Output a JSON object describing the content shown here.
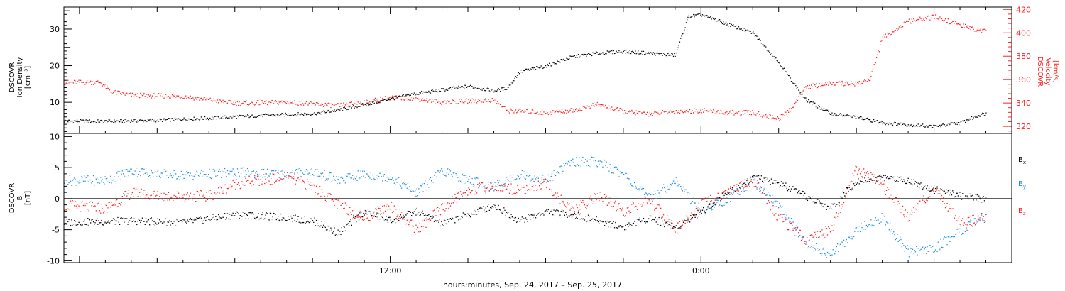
{
  "colors": {
    "density": "#000000",
    "velocity": "#ff2020",
    "bx": "#000000",
    "by": "#1f8ee0",
    "bz": "#ff2020",
    "frame": "#000000"
  },
  "xaxis": {
    "tick_labels": [
      "12:00",
      "0:00"
    ],
    "caption": "hours:minutes, Sep. 24, 2017 – Sep. 25, 2017"
  },
  "chart_data": [
    {
      "type": "scatter",
      "title": "",
      "xlabel": "hours:minutes, Sep. 24, 2017 – Sep. 25, 2017",
      "x_unit": "hours since 2017-09-24 00:00",
      "xlim": [
        -0.6,
        36.0
      ],
      "y_axis": {
        "label_lines": [
          "DSCOVR",
          "Ion Density",
          "[cm⁻³]"
        ],
        "ylim": [
          1.5,
          36
        ],
        "tick_labels": [
          "10",
          "20",
          "30"
        ]
      },
      "y2_axis": {
        "label_lines": [
          "DSCOVR",
          "Velocity",
          "[km/s]"
        ],
        "ylim": [
          314,
          422
        ],
        "tick_labels": [
          "320",
          "340",
          "360",
          "380",
          "400",
          "420"
        ]
      },
      "series": [
        {
          "name": "Ion Density",
          "axis": "left",
          "points": [
            [
              -0.6,
              5.0
            ],
            [
              1,
              4.9
            ],
            [
              3,
              5.2
            ],
            [
              5,
              5.8
            ],
            [
              7,
              6.5
            ],
            [
              9,
              7.0
            ],
            [
              10,
              8.0
            ],
            [
              11,
              9.5
            ],
            [
              12,
              11.0
            ],
            [
              13,
              12.5
            ],
            [
              14,
              13.5
            ],
            [
              15,
              14.5
            ],
            [
              16,
              13.2
            ],
            [
              16.5,
              14.0
            ],
            [
              17,
              18.5
            ],
            [
              18,
              20.0
            ],
            [
              19,
              22.5
            ],
            [
              20,
              23.5
            ],
            [
              21,
              24.0
            ],
            [
              22,
              23.5
            ],
            [
              23,
              23.0
            ],
            [
              23.5,
              33.5
            ],
            [
              24,
              34.0
            ],
            [
              25,
              31.5
            ],
            [
              26,
              29.0
            ],
            [
              27,
              21.0
            ],
            [
              28,
              11.0
            ],
            [
              29,
              7.0
            ],
            [
              30,
              6.0
            ],
            [
              31,
              4.5
            ],
            [
              32,
              4.0
            ],
            [
              33,
              3.5
            ],
            [
              34,
              4.5
            ],
            [
              34.8,
              6.8
            ],
            [
              35,
              7.0
            ]
          ]
        },
        {
          "name": "Velocity",
          "axis": "right",
          "points": [
            [
              -0.6,
              358
            ],
            [
              0.8,
              358
            ],
            [
              1.2,
              350
            ],
            [
              2,
              347
            ],
            [
              4,
              346
            ],
            [
              6,
              340
            ],
            [
              8,
              341
            ],
            [
              10,
              338
            ],
            [
              11,
              341
            ],
            [
              12,
              345
            ],
            [
              13,
              344
            ],
            [
              14,
              341
            ],
            [
              15,
              342
            ],
            [
              16,
              343
            ],
            [
              16.5,
              334
            ],
            [
              18,
              332
            ],
            [
              19,
              334
            ],
            [
              20,
              339
            ],
            [
              21,
              333
            ],
            [
              22,
              331
            ],
            [
              23,
              333
            ],
            [
              24,
              334
            ],
            [
              25,
              332
            ],
            [
              26,
              332
            ],
            [
              27,
              327
            ],
            [
              27.5,
              336
            ],
            [
              28,
              354
            ],
            [
              29,
              357
            ],
            [
              30,
              357
            ],
            [
              30.5,
              360
            ],
            [
              31,
              396
            ],
            [
              32,
              410
            ],
            [
              33,
              414
            ],
            [
              34,
              407
            ],
            [
              34.8,
              402
            ],
            [
              35,
              404
            ]
          ]
        }
      ]
    },
    {
      "type": "scatter",
      "title": "",
      "xlabel": "hours:minutes, Sep. 24, 2017 – Sep. 25, 2017",
      "x_unit": "hours since 2017-09-24 00:00",
      "xlim": [
        -0.6,
        36.0
      ],
      "y_axis": {
        "label_lines": [
          "DSCOVR",
          "B",
          "[nT]"
        ],
        "ylim": [
          -10.3,
          10.5
        ],
        "tick_labels": [
          "-10",
          "-5",
          "0",
          "5",
          "10"
        ]
      },
      "zero_line": 0,
      "series": [
        {
          "name": "Bx",
          "label_main": "B",
          "label_sub": "x",
          "points": [
            [
              -0.6,
              -3.8
            ],
            [
              2,
              -3.5
            ],
            [
              4,
              -3.8
            ],
            [
              6,
              -2.5
            ],
            [
              8,
              -3.0
            ],
            [
              9,
              -3.5
            ],
            [
              10,
              -5.5
            ],
            [
              11,
              -2.0
            ],
            [
              12,
              -3.5
            ],
            [
              13,
              -2.0
            ],
            [
              14,
              -4.0
            ],
            [
              15,
              -2.5
            ],
            [
              16,
              -1.0
            ],
            [
              17,
              -3.5
            ],
            [
              18,
              -2.0
            ],
            [
              19,
              -2.5
            ],
            [
              20,
              -3.5
            ],
            [
              21,
              -4.5
            ],
            [
              22,
              -3.0
            ],
            [
              23,
              -4.5
            ],
            [
              24,
              -2.0
            ],
            [
              25,
              1.0
            ],
            [
              26,
              3.5
            ],
            [
              27,
              2.5
            ],
            [
              28,
              0.5
            ],
            [
              29,
              -1.5
            ],
            [
              30,
              3.0
            ],
            [
              31,
              3.5
            ],
            [
              32,
              3.0
            ],
            [
              33,
              1.5
            ],
            [
              34,
              0.5
            ],
            [
              35,
              0.0
            ]
          ]
        },
        {
          "name": "By",
          "label_main": "B",
          "label_sub": "y",
          "points": [
            [
              -0.6,
              3.0
            ],
            [
              1,
              3.0
            ],
            [
              2,
              4.5
            ],
            [
              4,
              3.8
            ],
            [
              6,
              4.3
            ],
            [
              8,
              4.0
            ],
            [
              9,
              4.5
            ],
            [
              10,
              3.0
            ],
            [
              11,
              4.0
            ],
            [
              12,
              3.5
            ],
            [
              13,
              1.0
            ],
            [
              14,
              4.5
            ],
            [
              15,
              3.0
            ],
            [
              16,
              2.0
            ],
            [
              17,
              4.0
            ],
            [
              18,
              3.0
            ],
            [
              19,
              6.0
            ],
            [
              20,
              6.0
            ],
            [
              21,
              4.0
            ],
            [
              22,
              0.0
            ],
            [
              23,
              3.0
            ],
            [
              24,
              -2.0
            ],
            [
              25,
              0.0
            ],
            [
              26,
              3.0
            ],
            [
              27,
              -1.0
            ],
            [
              28,
              -7.0
            ],
            [
              29,
              -9.0
            ],
            [
              30,
              -5.0
            ],
            [
              31,
              -3.0
            ],
            [
              32,
              -8.5
            ],
            [
              33,
              -8.0
            ],
            [
              34,
              -5.0
            ],
            [
              35,
              -3.0
            ]
          ]
        },
        {
          "name": "Bz",
          "label_main": "B",
          "label_sub": "z",
          "points": [
            [
              -0.6,
              -1.0
            ],
            [
              1,
              -1.5
            ],
            [
              2,
              1.0
            ],
            [
              3,
              0.5
            ],
            [
              4,
              0.5
            ],
            [
              5,
              0.5
            ],
            [
              6,
              2.5
            ],
            [
              7,
              3.0
            ],
            [
              8,
              3.5
            ],
            [
              9,
              2.0
            ],
            [
              10,
              -1.0
            ],
            [
              11,
              -3.0
            ],
            [
              12,
              -1.0
            ],
            [
              13,
              -5.0
            ],
            [
              14,
              -1.5
            ],
            [
              15,
              1.5
            ],
            [
              16,
              2.0
            ],
            [
              17,
              1.5
            ],
            [
              18,
              2.5
            ],
            [
              19,
              -2.0
            ],
            [
              20,
              0.5
            ],
            [
              21,
              -2.0
            ],
            [
              22,
              0.0
            ],
            [
              23,
              -5.0
            ],
            [
              24,
              -1.0
            ],
            [
              25,
              1.0
            ],
            [
              26,
              3.0
            ],
            [
              27,
              -3.0
            ],
            [
              28,
              -6.5
            ],
            [
              29,
              -5.0
            ],
            [
              30,
              5.0
            ],
            [
              31,
              2.0
            ],
            [
              32,
              -3.0
            ],
            [
              33,
              2.0
            ],
            [
              34,
              -4.0
            ],
            [
              35,
              -3.0
            ]
          ]
        }
      ]
    }
  ]
}
